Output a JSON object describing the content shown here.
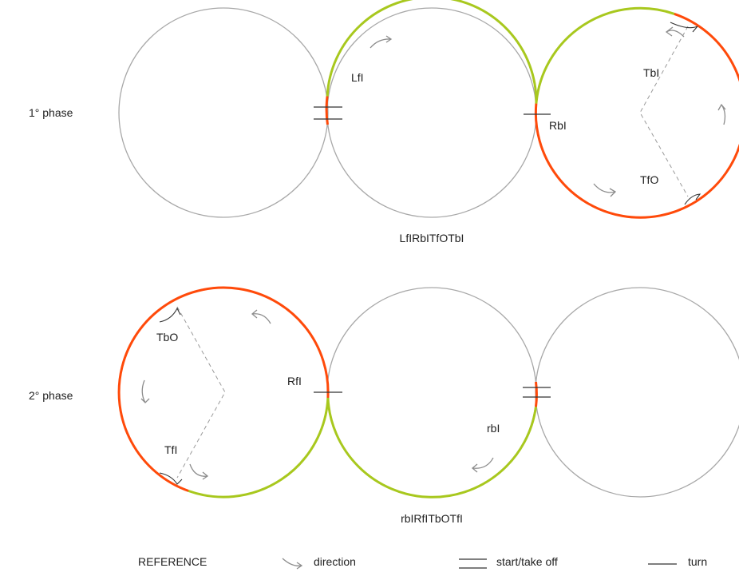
{
  "phase1": {
    "label": "1° phase",
    "sequence": "LfIRbITfOTbI",
    "labels": {
      "lfi": "LfI",
      "rbi": "RbI",
      "tbi": "TbI",
      "tfo": "TfO"
    }
  },
  "phase2": {
    "label": "2° phase",
    "sequence": "rbIRfITbOTfI",
    "labels": {
      "tbo": "TbO",
      "rfi": "RfI",
      "tfi": "TfI",
      "rbi": "rbI"
    }
  },
  "reference": {
    "title": "REFERENCE",
    "direction": "direction",
    "start": "start/take off",
    "turn": "turn"
  },
  "colors": {
    "circle": "#a8a8a8",
    "green": "#a8c81e",
    "orange": "#ff4a0a",
    "mark": "#333333",
    "arrow": "#8c8c8c",
    "dash": "#9a9a9a"
  }
}
